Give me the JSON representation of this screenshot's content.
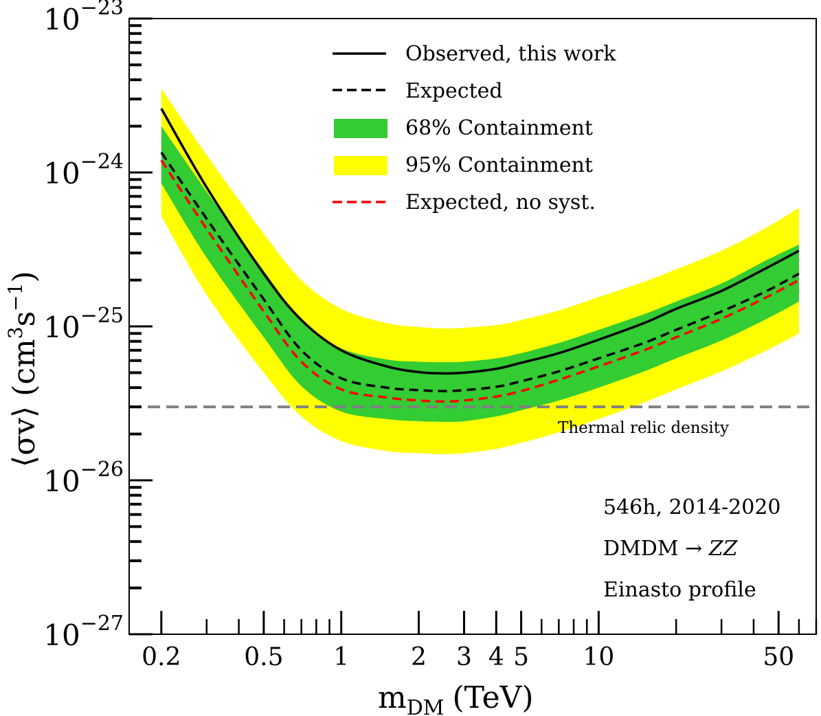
{
  "chart_data": {
    "type": "line",
    "title": "",
    "xlabel": "m_DM (TeV)",
    "xlabel_main": "m",
    "xlabel_sub": "DM",
    "xlabel_unit": "(TeV)",
    "ylabel": "⟨σv⟩ (cm³s⁻¹)",
    "ylabel_main": "⟨σv⟩ (cm",
    "ylabel_sup1": "3",
    "ylabel_mid": "s",
    "ylabel_sup2": "−1",
    "ylabel_end": ")",
    "xscale": "log",
    "yscale": "log",
    "xlim": [
      0.15,
      70
    ],
    "ylim": [
      1e-27,
      1e-23
    ],
    "grid": false,
    "legend_position": "top-center",
    "x_ticks": [
      {
        "value": 0.2,
        "label": "0.2"
      },
      {
        "value": 0.5,
        "label": "0.5"
      },
      {
        "value": 1,
        "label": "1"
      },
      {
        "value": 2,
        "label": "2"
      },
      {
        "value": 3,
        "label": "3"
      },
      {
        "value": 4,
        "label": "4"
      },
      {
        "value": 5,
        "label": "5"
      },
      {
        "value": 10,
        "label": "10"
      },
      {
        "value": 50,
        "label": "50"
      }
    ],
    "y_ticks": [
      {
        "value": 1e-23,
        "base": "10",
        "exp": "−23"
      },
      {
        "value": 1e-24,
        "base": "10",
        "exp": "−24"
      },
      {
        "value": 1e-25,
        "base": "10",
        "exp": "−25"
      },
      {
        "value": 1e-26,
        "base": "10",
        "exp": "−26"
      },
      {
        "value": 1e-27,
        "base": "10",
        "exp": "−27"
      }
    ],
    "x": [
      0.2,
      0.3,
      0.5,
      0.7,
      1.0,
      1.5,
      2.0,
      2.5,
      3.0,
      4.0,
      5.0,
      7.0,
      10,
      15,
      20,
      30,
      45,
      60
    ],
    "series": [
      {
        "name": "Observed, this work",
        "style": "solid",
        "color": "#000000",
        "values": [
          2.6e-24,
          8e-25,
          2.2e-25,
          1.1e-25,
          7e-26,
          5.5e-26,
          5.05e-26,
          4.95e-26,
          5e-26,
          5.3e-26,
          5.8e-26,
          6.7e-26,
          8.2e-26,
          1.05e-25,
          1.3e-25,
          1.7e-25,
          2.4e-25,
          3.1e-25
        ]
      },
      {
        "name": "Expected",
        "style": "dashed",
        "color": "#000000",
        "values": [
          1.35e-24,
          5e-25,
          1.5e-25,
          7e-26,
          4.6e-26,
          4e-26,
          3.85e-26,
          3.8e-26,
          3.85e-26,
          4.05e-26,
          4.4e-26,
          5.1e-26,
          6.2e-26,
          7.8e-26,
          9.5e-26,
          1.25e-25,
          1.7e-25,
          2.2e-25
        ]
      },
      {
        "name": "Expected, no syst.",
        "style": "dashed",
        "color": "#ff0000",
        "values": [
          1.2e-24,
          4.3e-25,
          1.25e-25,
          5.9e-26,
          3.9e-26,
          3.45e-26,
          3.3e-26,
          3.25e-26,
          3.3e-26,
          3.5e-26,
          3.8e-26,
          4.5e-26,
          5.5e-26,
          7e-26,
          8.5e-26,
          1.12e-25,
          1.55e-25,
          2e-25
        ]
      }
    ],
    "bands": [
      {
        "name": "95% Containment",
        "color": "#ffff00",
        "upper": [
          3.5e-24,
          1.3e-24,
          4e-25,
          2e-25,
          1.3e-25,
          1.05e-25,
          9.9e-26,
          9.7e-26,
          9.8e-26,
          1.02e-25,
          1.1e-25,
          1.27e-25,
          1.55e-25,
          1.95e-25,
          2.35e-25,
          3.1e-25,
          4.4e-25,
          5.9e-25
        ],
        "lower": [
          5.2e-25,
          1.6e-25,
          5e-26,
          2.6e-26,
          1.8e-26,
          1.55e-26,
          1.5e-26,
          1.48e-26,
          1.5e-26,
          1.6e-26,
          1.75e-26,
          2.05e-26,
          2.5e-26,
          3.2e-26,
          3.9e-26,
          5.1e-26,
          7e-26,
          9e-26
        ]
      },
      {
        "name": "68% Containment",
        "color": "#33cc33",
        "upper": [
          2e-24,
          7.5e-25,
          2.3e-25,
          1.1e-25,
          7.2e-26,
          6.1e-26,
          5.9e-26,
          5.85e-26,
          5.9e-26,
          6.2e-26,
          6.7e-26,
          7.8e-26,
          9.5e-26,
          1.2e-25,
          1.45e-25,
          1.9e-25,
          2.7e-25,
          3.4e-25
        ],
        "lower": [
          8.5e-25,
          2.8e-25,
          8.5e-26,
          4.1e-26,
          2.8e-26,
          2.5e-26,
          2.42e-26,
          2.4e-26,
          2.42e-26,
          2.6e-26,
          2.85e-26,
          3.3e-26,
          4e-26,
          5.1e-26,
          6.2e-26,
          8.1e-26,
          1.12e-25,
          1.45e-25
        ]
      }
    ],
    "reference_lines": [
      {
        "name": "Thermal relic density",
        "value": 3e-26,
        "style": "dashed",
        "color": "#808080"
      }
    ],
    "legend": [
      {
        "label": "Observed, this work",
        "kind": "line-solid",
        "color": "#000000"
      },
      {
        "label": "Expected",
        "kind": "line-dashed",
        "color": "#000000"
      },
      {
        "label": "68% Containment",
        "kind": "patch",
        "color": "#33cc33"
      },
      {
        "label": "95% Containment",
        "kind": "patch",
        "color": "#ffff00"
      },
      {
        "label": "Expected, no syst.",
        "kind": "line-dashed",
        "color": "#ff0000"
      }
    ],
    "annotations": [
      "546h, 2014-2020",
      "DMDM → ZZ",
      "Einasto profile"
    ],
    "annotation_parts": {
      "line2_main": "DMDM → ",
      "line2_italic": "ZZ"
    },
    "relic_label": "Thermal relic density"
  }
}
